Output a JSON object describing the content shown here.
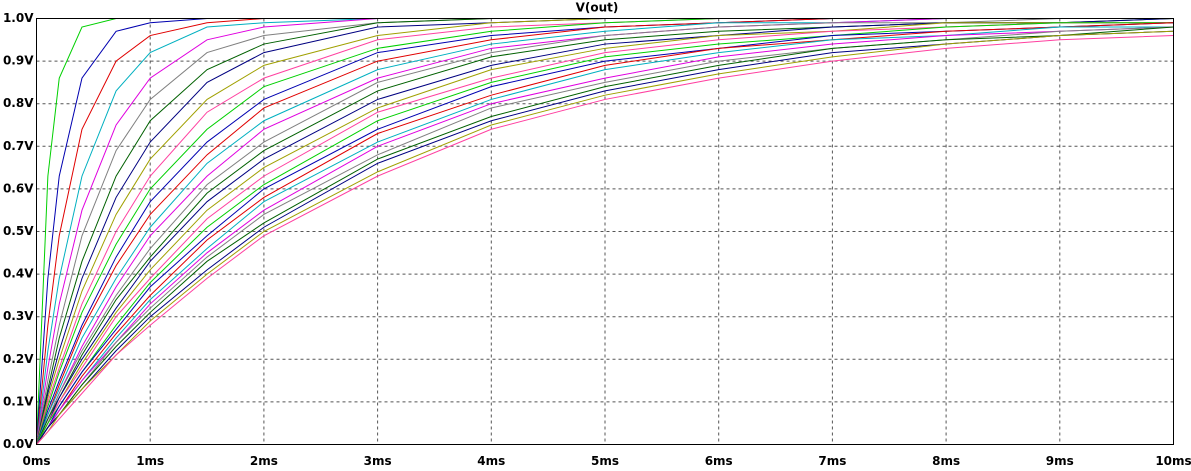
{
  "chart_data": {
    "type": "line",
    "title": "V(out)",
    "title_color": "#00c000",
    "x": [
      0,
      0.1,
      0.2,
      0.4,
      0.7,
      1,
      1.5,
      2,
      3,
      4,
      5,
      6,
      7,
      8,
      9,
      10
    ],
    "xlim": [
      0,
      10
    ],
    "xticks": [
      {
        "value": 0,
        "label": "0ms"
      },
      {
        "value": 1,
        "label": "1ms"
      },
      {
        "value": 2,
        "label": "2ms"
      },
      {
        "value": 3,
        "label": "3ms"
      },
      {
        "value": 4,
        "label": "4ms"
      },
      {
        "value": 5,
        "label": "5ms"
      },
      {
        "value": 6,
        "label": "6ms"
      },
      {
        "value": 7,
        "label": "7ms"
      },
      {
        "value": 8,
        "label": "8ms"
      },
      {
        "value": 9,
        "label": "9ms"
      },
      {
        "value": 10,
        "label": "10ms"
      }
    ],
    "ylim": [
      0,
      1
    ],
    "yticks": [
      {
        "value": 0,
        "label": "0.0V"
      },
      {
        "value": 0.1,
        "label": "0.1V"
      },
      {
        "value": 0.2,
        "label": "0.2V"
      },
      {
        "value": 0.3,
        "label": "0.3V"
      },
      {
        "value": 0.4,
        "label": "0.4V"
      },
      {
        "value": 0.5,
        "label": "0.5V"
      },
      {
        "value": 0.6,
        "label": "0.6V"
      },
      {
        "value": 0.7,
        "label": "0.7V"
      },
      {
        "value": 0.8,
        "label": "0.8V"
      },
      {
        "value": 0.9,
        "label": "0.9V"
      },
      {
        "value": 1,
        "label": "1.0V"
      }
    ],
    "grid": true,
    "series": [
      {
        "color": "#00d000",
        "values": [
          0,
          0.63,
          0.86,
          0.98,
          1,
          1,
          1,
          1,
          1,
          1,
          1,
          1,
          1,
          1,
          1,
          1
        ]
      },
      {
        "color": "#0000b0",
        "values": [
          0,
          0.39,
          0.63,
          0.86,
          0.97,
          0.99,
          1,
          1,
          1,
          1,
          1,
          1,
          1,
          1,
          1,
          1
        ]
      },
      {
        "color": "#e00000",
        "values": [
          0,
          0.28,
          0.49,
          0.74,
          0.9,
          0.96,
          0.99,
          1,
          1,
          1,
          1,
          1,
          1,
          1,
          1,
          1
        ]
      },
      {
        "color": "#00b0c0",
        "values": [
          0,
          0.22,
          0.39,
          0.63,
          0.83,
          0.92,
          0.98,
          0.99,
          1,
          1,
          1,
          1,
          1,
          1,
          1,
          1
        ]
      },
      {
        "color": "#e000e0",
        "values": [
          0,
          0.18,
          0.33,
          0.55,
          0.75,
          0.86,
          0.95,
          0.98,
          1,
          1,
          1,
          1,
          1,
          1,
          1,
          1
        ]
      },
      {
        "color": "#808080",
        "values": [
          0,
          0.15,
          0.28,
          0.49,
          0.69,
          0.81,
          0.92,
          0.96,
          0.99,
          1,
          1,
          1,
          1,
          1,
          1,
          1
        ]
      },
      {
        "color": "#006000",
        "values": [
          0,
          0.13,
          0.25,
          0.43,
          0.63,
          0.76,
          0.88,
          0.94,
          0.99,
          1,
          1,
          1,
          1,
          1,
          1,
          1
        ]
      },
      {
        "color": "#000080",
        "values": [
          0,
          0.12,
          0.22,
          0.39,
          0.58,
          0.71,
          0.85,
          0.92,
          0.98,
          0.99,
          1,
          1,
          1,
          1,
          1,
          1
        ]
      },
      {
        "color": "#a0a000",
        "values": [
          0,
          0.11,
          0.2,
          0.36,
          0.54,
          0.67,
          0.81,
          0.89,
          0.96,
          0.99,
          1,
          1,
          1,
          1,
          1,
          1
        ]
      },
      {
        "color": "#ff40a0",
        "values": [
          0,
          0.1,
          0.18,
          0.33,
          0.5,
          0.63,
          0.78,
          0.86,
          0.95,
          0.98,
          0.99,
          1,
          1,
          1,
          1,
          1
        ]
      },
      {
        "color": "#00d000",
        "values": [
          0,
          0.09,
          0.17,
          0.31,
          0.47,
          0.6,
          0.74,
          0.84,
          0.93,
          0.97,
          0.99,
          1,
          1,
          1,
          1,
          1
        ]
      },
      {
        "color": "#0000b0",
        "values": [
          0,
          0.08,
          0.15,
          0.28,
          0.44,
          0.57,
          0.71,
          0.81,
          0.92,
          0.96,
          0.98,
          0.99,
          1,
          1,
          1,
          1
        ]
      },
      {
        "color": "#e00000",
        "values": [
          0,
          0.07,
          0.14,
          0.27,
          0.42,
          0.54,
          0.68,
          0.79,
          0.9,
          0.95,
          0.98,
          0.99,
          1,
          1,
          1,
          1
        ]
      },
      {
        "color": "#00b0c0",
        "values": [
          0,
          0.07,
          0.13,
          0.25,
          0.39,
          0.51,
          0.66,
          0.76,
          0.88,
          0.94,
          0.97,
          0.99,
          0.99,
          1,
          1,
          1
        ]
      },
      {
        "color": "#e000e0",
        "values": [
          0,
          0.06,
          0.12,
          0.23,
          0.37,
          0.49,
          0.63,
          0.74,
          0.86,
          0.93,
          0.96,
          0.98,
          0.99,
          1,
          1,
          1
        ]
      },
      {
        "color": "#808080",
        "values": [
          0,
          0.06,
          0.12,
          0.22,
          0.35,
          0.46,
          0.61,
          0.71,
          0.85,
          0.92,
          0.96,
          0.98,
          0.99,
          0.99,
          1,
          1
        ]
      },
      {
        "color": "#006000",
        "values": [
          0,
          0.06,
          0.11,
          0.21,
          0.34,
          0.44,
          0.59,
          0.69,
          0.83,
          0.91,
          0.95,
          0.97,
          0.98,
          0.99,
          0.99,
          1
        ]
      },
      {
        "color": "#000080",
        "values": [
          0,
          0.05,
          0.11,
          0.2,
          0.32,
          0.43,
          0.57,
          0.67,
          0.81,
          0.89,
          0.94,
          0.96,
          0.98,
          0.99,
          0.99,
          1
        ]
      },
      {
        "color": "#a0a000",
        "values": [
          0,
          0.05,
          0.1,
          0.19,
          0.31,
          0.41,
          0.55,
          0.65,
          0.79,
          0.88,
          0.93,
          0.96,
          0.97,
          0.99,
          0.99,
          0.99
        ]
      },
      {
        "color": "#ff40a0",
        "values": [
          0,
          0.05,
          0.1,
          0.18,
          0.3,
          0.39,
          0.53,
          0.63,
          0.78,
          0.86,
          0.92,
          0.95,
          0.97,
          0.98,
          0.99,
          0.99
        ]
      },
      {
        "color": "#00d000",
        "values": [
          0,
          0.05,
          0.09,
          0.17,
          0.28,
          0.38,
          0.51,
          0.61,
          0.76,
          0.85,
          0.91,
          0.94,
          0.96,
          0.98,
          0.99,
          0.99
        ]
      },
      {
        "color": "#0000b0",
        "values": [
          0,
          0.04,
          0.09,
          0.17,
          0.27,
          0.37,
          0.49,
          0.6,
          0.74,
          0.84,
          0.9,
          0.93,
          0.96,
          0.97,
          0.98,
          0.99
        ]
      },
      {
        "color": "#e00000",
        "values": [
          0,
          0.04,
          0.08,
          0.16,
          0.26,
          0.35,
          0.48,
          0.58,
          0.73,
          0.82,
          0.89,
          0.93,
          0.95,
          0.97,
          0.98,
          0.99
        ]
      },
      {
        "color": "#00b0c0",
        "values": [
          0,
          0.04,
          0.08,
          0.15,
          0.25,
          0.34,
          0.46,
          0.57,
          0.71,
          0.81,
          0.88,
          0.92,
          0.95,
          0.96,
          0.98,
          0.98
        ]
      },
      {
        "color": "#e000e0",
        "values": [
          0,
          0.04,
          0.08,
          0.15,
          0.24,
          0.33,
          0.45,
          0.55,
          0.7,
          0.8,
          0.86,
          0.91,
          0.94,
          0.96,
          0.97,
          0.98
        ]
      },
      {
        "color": "#808080",
        "values": [
          0,
          0.04,
          0.07,
          0.14,
          0.24,
          0.32,
          0.44,
          0.54,
          0.68,
          0.79,
          0.85,
          0.9,
          0.93,
          0.95,
          0.97,
          0.98
        ]
      },
      {
        "color": "#006000",
        "values": [
          0,
          0.04,
          0.07,
          0.14,
          0.23,
          0.31,
          0.43,
          0.52,
          0.67,
          0.77,
          0.84,
          0.89,
          0.93,
          0.95,
          0.96,
          0.98
        ]
      },
      {
        "color": "#000080",
        "values": [
          0,
          0.04,
          0.07,
          0.13,
          0.22,
          0.3,
          0.41,
          0.51,
          0.66,
          0.76,
          0.83,
          0.88,
          0.92,
          0.94,
          0.96,
          0.97
        ]
      },
      {
        "color": "#a0a000",
        "values": [
          0,
          0.03,
          0.07,
          0.13,
          0.21,
          0.29,
          0.4,
          0.5,
          0.64,
          0.75,
          0.82,
          0.87,
          0.91,
          0.94,
          0.96,
          0.97
        ]
      },
      {
        "color": "#ff40a0",
        "values": [
          0,
          0.03,
          0.06,
          0.12,
          0.21,
          0.28,
          0.39,
          0.49,
          0.63,
          0.74,
          0.81,
          0.86,
          0.9,
          0.93,
          0.95,
          0.96
        ]
      }
    ]
  }
}
